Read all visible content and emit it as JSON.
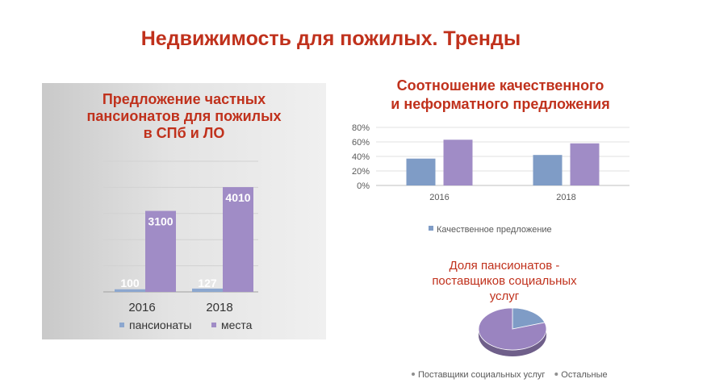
{
  "page": {
    "title": "Недвижимость для пожилых. Тренды"
  },
  "colors": {
    "title_red": "#c0311c",
    "blue": "#7f9cc6",
    "purple": "#a08cc6",
    "gray": "#8f8f8f"
  },
  "chart_data": [
    {
      "type": "bar",
      "title_lines": [
        "Предложение частных",
        "пансионатов для пожилых",
        "в СПб и ЛО"
      ],
      "categories": [
        "2016",
        "2018"
      ],
      "series": [
        {
          "name": "пансионаты",
          "values": [
            100,
            127
          ],
          "color": "#8ca7cf"
        },
        {
          "name": "места",
          "values": [
            3100,
            4010
          ],
          "color": "#a08cc6"
        }
      ],
      "data_labels": [
        [
          "100",
          "127"
        ],
        [
          "3100",
          "4010"
        ]
      ],
      "ylim": [
        0,
        5000
      ],
      "grid": true,
      "legend_position": "bottom"
    },
    {
      "type": "bar",
      "title_lines": [
        "Соотношение качественного",
        "и неформатного предложения"
      ],
      "categories": [
        "2016",
        "2018"
      ],
      "series": [
        {
          "name": "Качественное предложение",
          "values": [
            0.37,
            0.42
          ],
          "color": "#7f9cc6"
        },
        {
          "values": [
            0.63,
            0.58
          ],
          "color": "#a08cc6"
        }
      ],
      "y_ticks": [
        "0%",
        "20%",
        "40%",
        "60%",
        "80%"
      ],
      "ylim": [
        0,
        0.8
      ],
      "grid": true,
      "legend_position": "bottom",
      "legend_items": [
        "Качественное предложение"
      ]
    },
    {
      "type": "pie",
      "title_lines": [
        "Доля пансионатов -",
        "поставщиков социальных",
        "услуг"
      ],
      "slices": [
        {
          "label": "Поставщики социальных услуг",
          "value": 0.2,
          "color": "#7f9cc6"
        },
        {
          "label": "Остальные",
          "value": 0.8,
          "color": "#9a84c0"
        }
      ],
      "legend_position": "bottom",
      "legend_items": [
        "Поставщики социальных услуг",
        "Остальные"
      ]
    }
  ]
}
